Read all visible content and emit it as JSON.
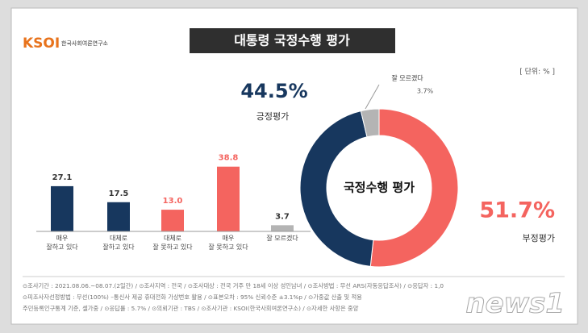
{
  "header": {
    "logo": "KSOI",
    "logo_subtitle": "한국사회여론연구소",
    "title": "대통령 국정수행 평가",
    "unit": "[ 단위: % ]"
  },
  "chart_data": [
    {
      "type": "bar",
      "categories": [
        "매우\n잘하고 있다",
        "대체로\n잘하고 있다",
        "대체로\n잘 못하고 있다",
        "매우\n잘 못하고 있다",
        "잘 모르겠다"
      ],
      "values": [
        27.1,
        17.5,
        13.0,
        38.8,
        3.7
      ],
      "value_labels": [
        "27.1",
        "17.5",
        "13.0",
        "38.8",
        "3.7"
      ],
      "colors": [
        "#17375e",
        "#17375e",
        "#f4645f",
        "#f4645f",
        "#b4b4b4"
      ]
    },
    {
      "type": "pie",
      "title": "국정수행 평가",
      "categories": [
        "부정평가",
        "긍정평가",
        "잘 모르겠다"
      ],
      "values": [
        51.7,
        44.5,
        3.7
      ],
      "value_labels": [
        "51.7%",
        "44.5%",
        "3.7%"
      ],
      "colors": [
        "#f4645f",
        "#17375e",
        "#b4b4b4"
      ]
    }
  ],
  "footer": {
    "lines": [
      "⊙조사기간 : 2021.08.06.~08.07.(2일간)  /  ⊙조사지역 : 전국  /  ⊙조사대상 : 전국 거주 만 18세 이상 성인남녀  /  ⊙조사방법 : 무선 ARS(자동응답조사)  /  ⊙응답자 : 1,0",
      "⊙피조사자선정방법 : 무선(100%) –통신사 제공 휴대전화 가상번호 활용  /  ⊙표본오차 : 95% 신뢰수준 ±3.1%p  /  ⊙가중값 산출 및 적용",
      "주민등록인구통계 기준, 셀가중  /  ⊙응답률 : 5.7%  /  ⊙의뢰기관 : TBS  /  ⊙조사기관 : KSOI(한국사회여론연구소)  /  ⊙자세한 사항은 중앙"
    ],
    "watermark": "news1"
  }
}
